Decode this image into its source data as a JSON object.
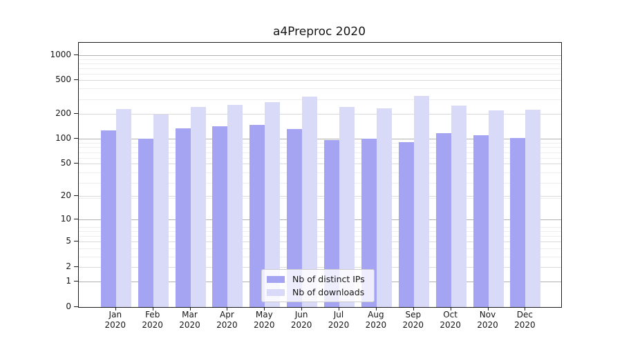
{
  "chart_data": {
    "type": "bar",
    "title": "a4Preproc 2020",
    "categories": [
      "Jan",
      "Feb",
      "Mar",
      "Apr",
      "May",
      "Jun",
      "Jul",
      "Aug",
      "Sep",
      "Oct",
      "Nov",
      "Dec"
    ],
    "year_label": "2020",
    "series": [
      {
        "name": "Nb of distinct IPs",
        "color": "#a4a4f2",
        "values": [
          127,
          100,
          134,
          141,
          148,
          131,
          97,
          100,
          91,
          117,
          110,
          102
        ]
      },
      {
        "name": "Nb of downloads",
        "color": "#d9d9f8",
        "values": [
          227,
          195,
          240,
          256,
          276,
          321,
          242,
          233,
          328,
          252,
          218,
          225
        ]
      }
    ],
    "xlabel": "",
    "ylabel": "",
    "yscale": "log1p",
    "y_ticks": [
      0,
      1,
      2,
      5,
      10,
      20,
      50,
      100,
      200,
      500,
      1000
    ],
    "ylim": [
      0,
      1400
    ],
    "grid": true,
    "legend_position": "lower center"
  }
}
